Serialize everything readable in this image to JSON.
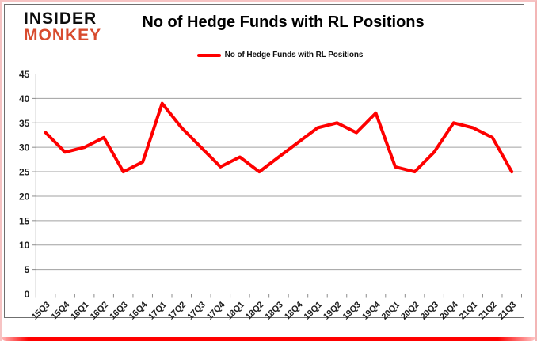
{
  "logo": {
    "line1": "INSIDER",
    "line2": "MONKEY"
  },
  "header": {
    "title": "No of Hedge Funds with RL Positions"
  },
  "legend": {
    "label": "No of Hedge Funds with RL Positions"
  },
  "colors": {
    "series_red": "#fe0000",
    "logo_red": "#d84b2e",
    "gridline_gray": "#a0a0a0",
    "axis_gray": "#8c8c8c",
    "frame_pink": "#f6c3c3",
    "chart_border_gray": "#6f6f6f",
    "text_black": "#1f1f1f"
  },
  "chart_data": {
    "type": "line",
    "title": "No of Hedge Funds with RL Positions",
    "xlabel": "",
    "ylabel": "",
    "grid": "horizontal",
    "legend_position": "top-center",
    "ylim": [
      0,
      45
    ],
    "yticks": [
      0,
      5,
      10,
      15,
      20,
      25,
      30,
      35,
      40,
      45
    ],
    "categories": [
      "15Q3",
      "15Q4",
      "16Q1",
      "16Q2",
      "16Q3",
      "16Q4",
      "17Q1",
      "17Q2",
      "17Q3",
      "17Q4",
      "18Q1",
      "18Q2",
      "18Q3",
      "18Q4",
      "19Q1",
      "19Q2",
      "19Q3",
      "19Q4",
      "20Q1",
      "20Q2",
      "20Q3",
      "20Q4",
      "21Q1",
      "21Q2",
      "21Q3"
    ],
    "series": [
      {
        "name": "No of Hedge Funds with RL Positions",
        "color": "#fe0000",
        "values": [
          33,
          29,
          30,
          32,
          25,
          27,
          39,
          34,
          30,
          26,
          28,
          25,
          28,
          31,
          34,
          35,
          33,
          37,
          26,
          25,
          29,
          35,
          34,
          32,
          25
        ]
      }
    ]
  }
}
